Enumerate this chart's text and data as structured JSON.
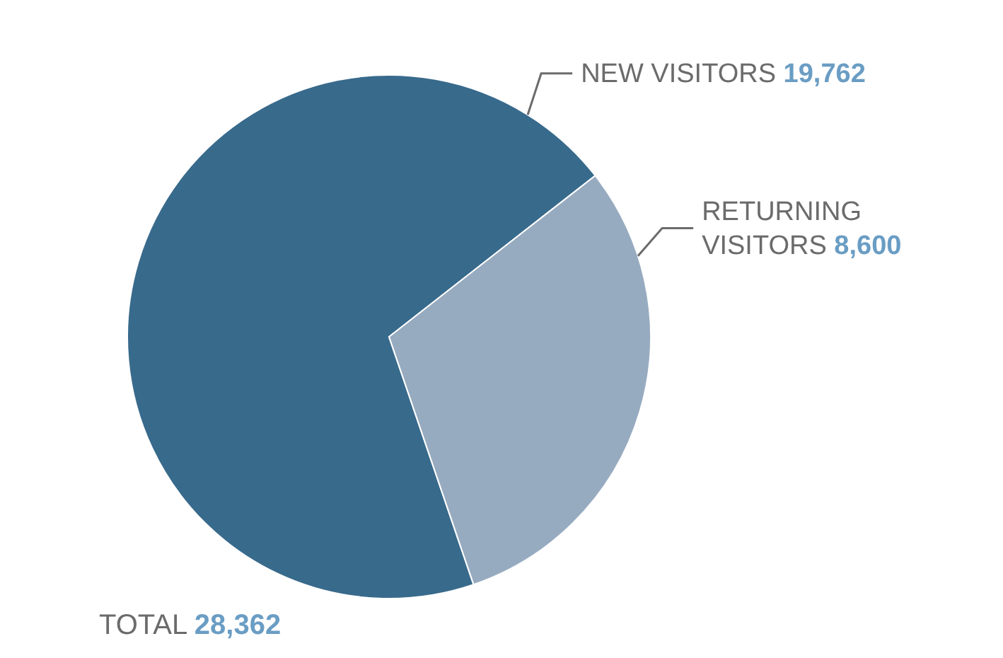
{
  "chart_data": {
    "type": "pie",
    "categories": [
      "NEW VISITORS",
      "RETURNING VISITORS"
    ],
    "values": [
      19762,
      8600
    ],
    "colors": [
      "#386a8c",
      "#97abc0"
    ],
    "value_labels": [
      "19,762",
      "8,600"
    ],
    "annotations": [
      "TOTAL 28,362"
    ]
  }
}
